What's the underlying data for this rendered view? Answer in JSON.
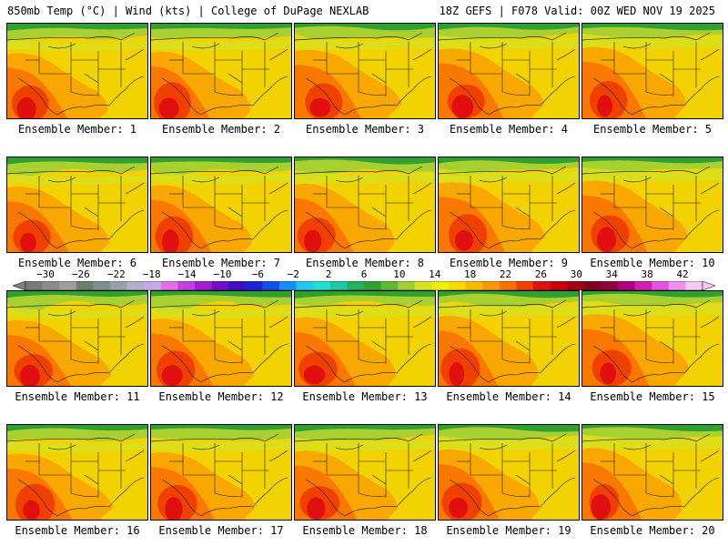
{
  "header": {
    "left": "850mb Temp (°C) | Wind (kts) | College of DuPage NEXLAB",
    "right": "18Z GEFS | F078 Valid: 00Z WED NOV 19 2025"
  },
  "members": [
    {
      "label": "Ensemble Member: 1"
    },
    {
      "label": "Ensemble Member: 2"
    },
    {
      "label": "Ensemble Member: 3"
    },
    {
      "label": "Ensemble Member: 4"
    },
    {
      "label": "Ensemble Member: 5"
    },
    {
      "label": "Ensemble Member: 6"
    },
    {
      "label": "Ensemble Member: 7"
    },
    {
      "label": "Ensemble Member: 8"
    },
    {
      "label": "Ensemble Member: 9"
    },
    {
      "label": "Ensemble Member: 10"
    },
    {
      "label": "Ensemble Member: 11"
    },
    {
      "label": "Ensemble Member: 12"
    },
    {
      "label": "Ensemble Member: 13"
    },
    {
      "label": "Ensemble Member: 14"
    },
    {
      "label": "Ensemble Member: 15"
    },
    {
      "label": "Ensemble Member: 16"
    },
    {
      "label": "Ensemble Member: 17"
    },
    {
      "label": "Ensemble Member: 18"
    },
    {
      "label": "Ensemble Member: 19"
    },
    {
      "label": "Ensemble Member: 20"
    }
  ],
  "colorbar": {
    "ticks": [
      "−30",
      "−26",
      "−22",
      "−18",
      "−14",
      "−10",
      "−6",
      "−2",
      "2",
      "6",
      "10",
      "14",
      "18",
      "22",
      "26",
      "30",
      "34",
      "38",
      "42"
    ],
    "colors": [
      "#7a7a7a",
      "#8c8c8c",
      "#9e9e9e",
      "#6f7d6f",
      "#7f8f8f",
      "#9aa0aa",
      "#b0b0cc",
      "#c8a8e8",
      "#e070e8",
      "#c040e0",
      "#a020d0",
      "#7010c8",
      "#4010c0",
      "#2020d8",
      "#1050e8",
      "#1090f0",
      "#20c8f0",
      "#20e0d0",
      "#20c8a0",
      "#20b060",
      "#30a030",
      "#60b830",
      "#a0d030",
      "#d8e020",
      "#f0f000",
      "#f8d800",
      "#f8b800",
      "#f89800",
      "#f87000",
      "#f04000",
      "#e01010",
      "#c80010",
      "#a00010",
      "#800020",
      "#900040",
      "#b00080",
      "#d020b0",
      "#e850e0",
      "#f090f0",
      "#f8c8f8"
    ]
  }
}
